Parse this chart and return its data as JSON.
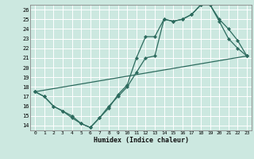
{
  "title": "",
  "xlabel": "Humidex (Indice chaleur)",
  "bg_color": "#cce8e0",
  "grid_color": "#ffffff",
  "line_color": "#2d6b5e",
  "xlim": [
    -0.5,
    23.5
  ],
  "ylim": [
    13.5,
    26.5
  ],
  "xticks": [
    0,
    1,
    2,
    3,
    4,
    5,
    6,
    7,
    8,
    9,
    10,
    11,
    12,
    13,
    14,
    15,
    16,
    17,
    18,
    19,
    20,
    21,
    22,
    23
  ],
  "yticks": [
    14,
    15,
    16,
    17,
    18,
    19,
    20,
    21,
    22,
    23,
    24,
    25,
    26
  ],
  "line1_x": [
    0,
    1,
    2,
    3,
    4,
    5,
    6,
    7,
    8,
    9,
    10,
    11,
    12,
    13,
    14,
    15,
    16,
    17,
    18,
    19,
    20,
    21,
    22,
    23
  ],
  "line1_y": [
    17.5,
    17.0,
    16.0,
    15.5,
    15.0,
    14.2,
    13.8,
    14.8,
    15.8,
    17.2,
    18.2,
    21.0,
    23.2,
    23.2,
    25.0,
    24.8,
    25.0,
    25.5,
    26.5,
    26.5,
    24.8,
    23.0,
    22.0,
    21.2
  ],
  "line2_x": [
    0,
    1,
    2,
    3,
    4,
    5,
    6,
    7,
    8,
    9,
    10,
    11,
    12,
    13,
    14,
    15,
    16,
    17,
    18,
    19,
    20,
    21,
    22,
    23
  ],
  "line2_y": [
    17.5,
    17.0,
    16.0,
    15.5,
    14.8,
    14.2,
    13.8,
    14.8,
    16.0,
    17.0,
    18.0,
    19.5,
    21.0,
    21.2,
    25.0,
    24.8,
    25.0,
    25.5,
    26.5,
    26.5,
    25.0,
    24.0,
    22.8,
    21.2
  ],
  "line3_x": [
    0,
    23
  ],
  "line3_y": [
    17.5,
    21.2
  ]
}
